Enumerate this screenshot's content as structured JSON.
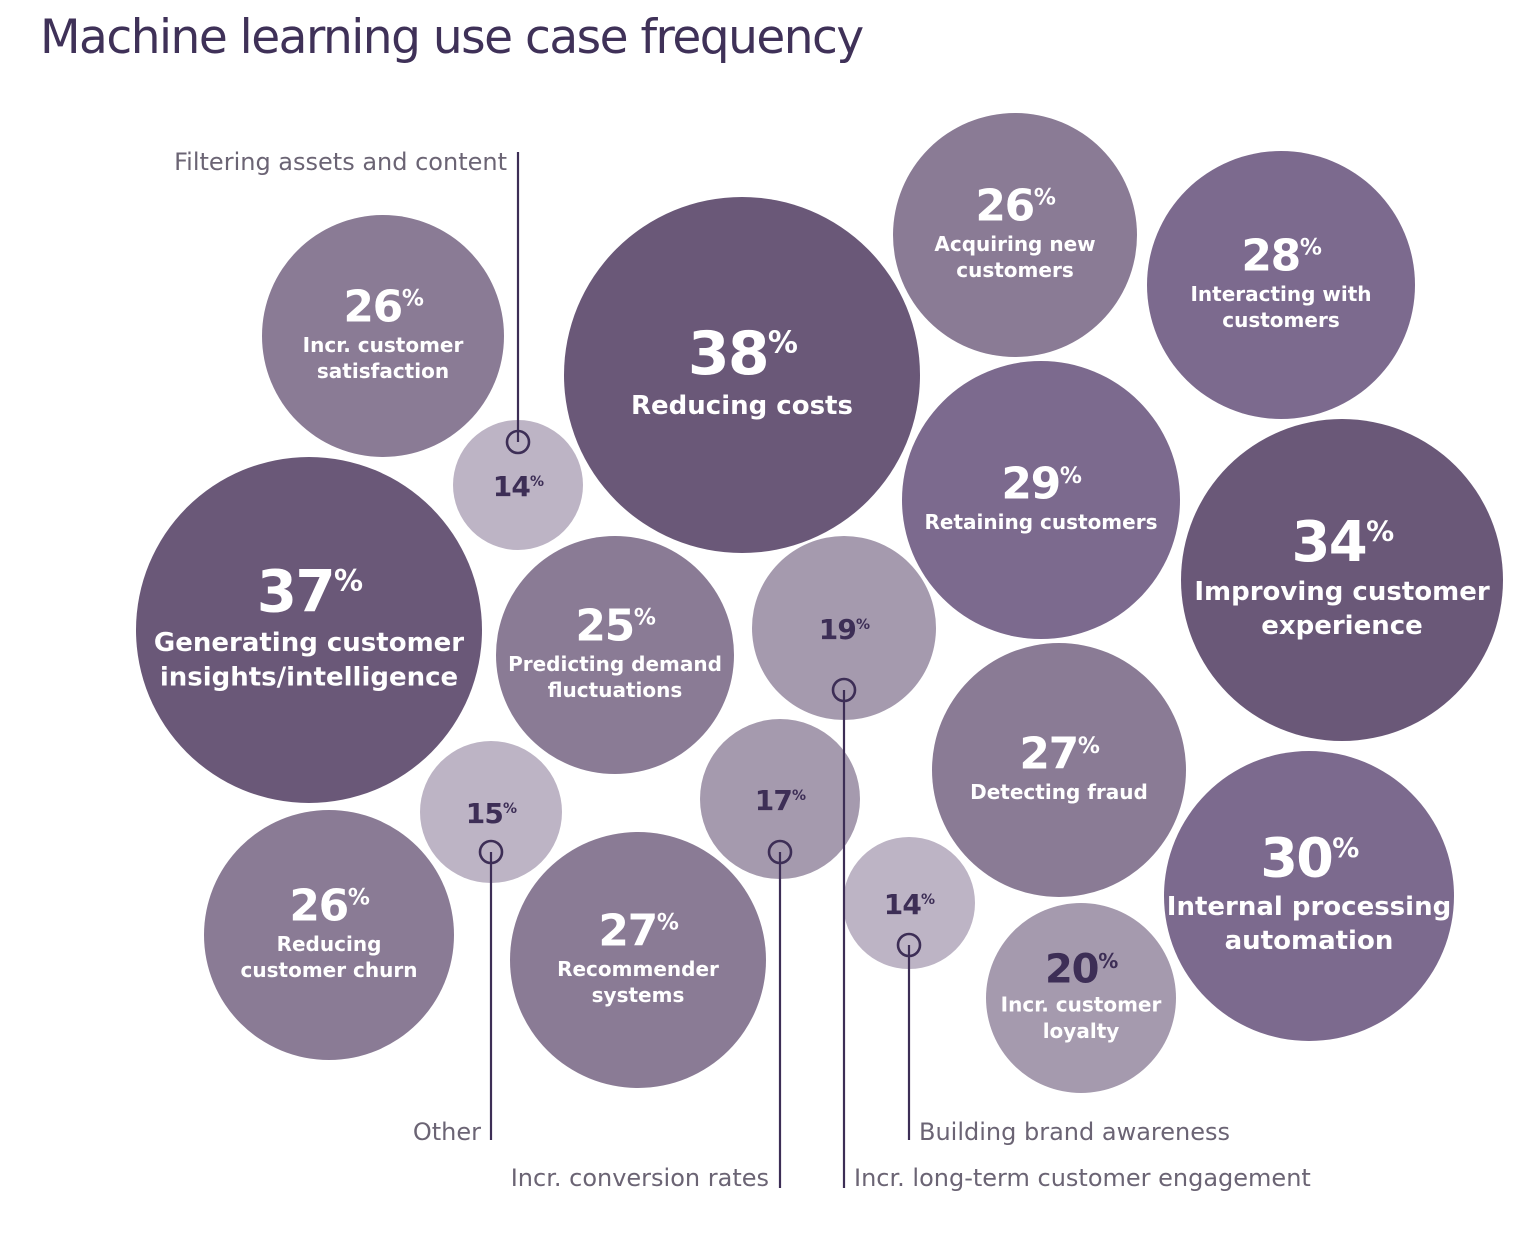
{
  "title": "Machine learning use case frequency",
  "chart_data": {
    "type": "bubble",
    "title": "Machine learning use case frequency",
    "unit": "%",
    "colors": {
      "large": "#6a5878",
      "medium": "#7c6a8e",
      "small": "#8a7b95",
      "pale": "#a59aae",
      "palest": "#bdb4c5",
      "value_dark": "#3d2e56",
      "leader": "#3d2e56"
    },
    "bubbles": [
      {
        "label": "Reducing costs",
        "value": 38
      },
      {
        "label": "Generating customer insights/intelligence",
        "value": 37
      },
      {
        "label": "Improving customer experience",
        "value": 34
      },
      {
        "label": "Internal processing automation",
        "value": 30
      },
      {
        "label": "Retaining customers",
        "value": 29
      },
      {
        "label": "Interacting with customers",
        "value": 28
      },
      {
        "label": "Detecting fraud",
        "value": 27
      },
      {
        "label": "Recommender systems",
        "value": 27
      },
      {
        "label": "Acquiring new customers",
        "value": 26
      },
      {
        "label": "Incr. customer satisfaction",
        "value": 26
      },
      {
        "label": "Reducing customer churn",
        "value": 26
      },
      {
        "label": "Predicting demand fluctuations",
        "value": 25
      },
      {
        "label": "Incr. customer loyalty",
        "value": 20
      },
      {
        "label": "Incr. long-term customer engagement",
        "value": 19
      },
      {
        "label": "Incr. conversion rates",
        "value": 17
      },
      {
        "label": "Other",
        "value": 15
      },
      {
        "label": "Filtering assets and content",
        "value": 14
      },
      {
        "label": "Building brand awareness",
        "value": 14
      }
    ]
  }
}
